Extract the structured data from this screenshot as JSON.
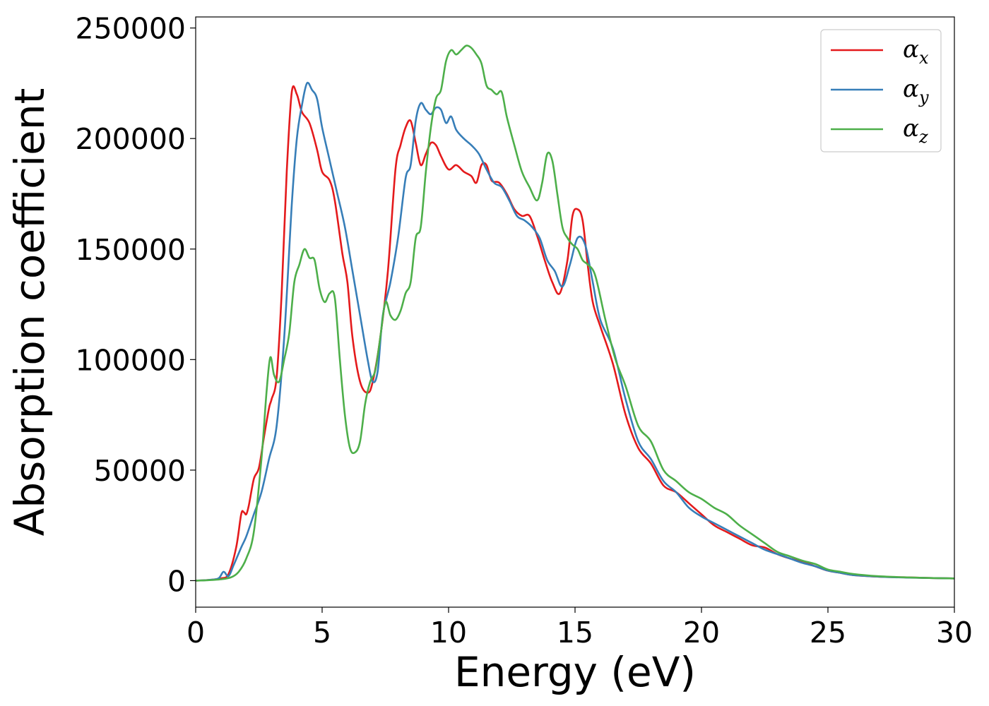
{
  "chart_data": {
    "type": "line",
    "xlabel": "Energy (eV)",
    "ylabel": "Absorption coefficient",
    "xlim": [
      0,
      30
    ],
    "ylim": [
      -12000,
      255000
    ],
    "xticks": [
      0,
      5,
      10,
      15,
      20,
      25,
      30
    ],
    "xtick_labels": [
      "0",
      "5",
      "10",
      "15",
      "20",
      "25",
      "30"
    ],
    "yticks": [
      0,
      50000,
      100000,
      150000,
      200000,
      250000
    ],
    "ytick_labels": [
      "0",
      "50000",
      "100000",
      "150000",
      "200000",
      "250000"
    ],
    "grid": false,
    "legend_position": "top-right",
    "series": [
      {
        "name": "α_x",
        "symbol": "α",
        "subscript": "x",
        "color": "#e41a1c",
        "x": [
          0,
          0.5,
          1.0,
          1.3,
          1.6,
          1.8,
          1.9,
          2.0,
          2.1,
          2.3,
          2.5,
          2.7,
          2.9,
          3.0,
          3.2,
          3.4,
          3.6,
          3.8,
          4.0,
          4.2,
          4.5,
          4.8,
          5.0,
          5.3,
          5.5,
          5.8,
          6.0,
          6.2,
          6.5,
          6.8,
          7.0,
          7.3,
          7.6,
          7.9,
          8.1,
          8.3,
          8.5,
          8.7,
          8.9,
          9.1,
          9.3,
          9.5,
          9.7,
          10.0,
          10.3,
          10.6,
          10.9,
          11.1,
          11.3,
          11.5,
          11.7,
          12.0,
          12.3,
          12.6,
          12.9,
          13.2,
          13.5,
          13.8,
          14.1,
          14.4,
          14.7,
          14.9,
          15.1,
          15.3,
          15.5,
          15.7,
          16.0,
          16.5,
          17.0,
          17.5,
          18.0,
          18.5,
          19.0,
          19.5,
          20.0,
          20.5,
          21.0,
          21.5,
          22.0,
          22.5,
          23.0,
          23.5,
          24.0,
          24.5,
          25.0,
          25.5,
          26.0,
          27.0,
          28.0,
          29.0,
          30.0
        ],
        "y": [
          0,
          300,
          1000,
          3000,
          15000,
          30000,
          31000,
          30000,
          34000,
          46000,
          51000,
          65000,
          78000,
          82000,
          92000,
          130000,
          185000,
          221000,
          220000,
          212000,
          207000,
          195000,
          185000,
          181000,
          172000,
          148000,
          135000,
          110000,
          90000,
          85000,
          90000,
          110000,
          140000,
          186000,
          197000,
          205000,
          208000,
          198000,
          188000,
          193000,
          198000,
          197000,
          192000,
          186000,
          188000,
          185000,
          183000,
          180000,
          188000,
          188000,
          181000,
          180000,
          175000,
          168000,
          165000,
          165000,
          156000,
          145000,
          135000,
          130000,
          145000,
          165000,
          168000,
          163000,
          143000,
          126000,
          115000,
          98000,
          75000,
          60000,
          53000,
          43000,
          40000,
          35000,
          30000,
          25000,
          22000,
          19000,
          16000,
          15000,
          12000,
          10000,
          8500,
          6500,
          4500,
          3500,
          2500,
          1800,
          1500,
          1200,
          1000
        ]
      },
      {
        "name": "α_y",
        "symbol": "α",
        "subscript": "y",
        "color": "#377eb8",
        "x": [
          0,
          0.5,
          0.9,
          1.1,
          1.3,
          1.5,
          1.8,
          2.0,
          2.3,
          2.6,
          2.9,
          3.2,
          3.5,
          3.8,
          4.0,
          4.2,
          4.4,
          4.6,
          4.8,
          5.0,
          5.3,
          5.6,
          5.9,
          6.2,
          6.5,
          6.8,
          7.0,
          7.2,
          7.4,
          7.7,
          8.0,
          8.3,
          8.5,
          8.7,
          8.9,
          9.1,
          9.3,
          9.5,
          9.7,
          9.9,
          10.1,
          10.3,
          10.6,
          10.9,
          11.2,
          11.5,
          11.8,
          12.1,
          12.4,
          12.7,
          13.0,
          13.3,
          13.6,
          13.9,
          14.2,
          14.5,
          14.8,
          15.1,
          15.4,
          15.7,
          16.0,
          16.5,
          17.0,
          17.5,
          18.0,
          18.5,
          19.0,
          19.5,
          20.0,
          20.5,
          21.0,
          21.5,
          22.0,
          22.5,
          23.0,
          23.5,
          24.0,
          24.5,
          25.0,
          25.5,
          26.0,
          27.0,
          28.0,
          29.0,
          30.0
        ],
        "y": [
          0,
          300,
          1000,
          4000,
          2000,
          7000,
          15000,
          20000,
          30000,
          40000,
          55000,
          70000,
          110000,
          170000,
          200000,
          215000,
          225000,
          222000,
          218000,
          205000,
          190000,
          175000,
          160000,
          140000,
          120000,
          100000,
          90000,
          95000,
          120000,
          135000,
          155000,
          182000,
          188000,
          208000,
          216000,
          213000,
          211000,
          214000,
          213000,
          207000,
          210000,
          204000,
          200000,
          197000,
          193000,
          186000,
          180000,
          178000,
          172000,
          165000,
          163000,
          160000,
          155000,
          145000,
          140000,
          133000,
          143000,
          155000,
          152000,
          135000,
          118000,
          105000,
          82000,
          63000,
          55000,
          45000,
          40000,
          33000,
          29000,
          26000,
          23000,
          20000,
          17000,
          14000,
          12000,
          10000,
          8000,
          6500,
          4500,
          3500,
          2500,
          1800,
          1400,
          1200,
          1000
        ]
      },
      {
        "name": "α_z",
        "symbol": "α",
        "subscript": "z",
        "color": "#4daf4a",
        "x": [
          0,
          0.5,
          1.0,
          1.4,
          1.7,
          2.0,
          2.3,
          2.6,
          2.8,
          2.95,
          3.1,
          3.3,
          3.5,
          3.7,
          3.9,
          4.1,
          4.3,
          4.5,
          4.7,
          4.9,
          5.1,
          5.3,
          5.5,
          5.7,
          5.9,
          6.1,
          6.3,
          6.5,
          6.7,
          6.9,
          7.1,
          7.3,
          7.5,
          7.7,
          7.9,
          8.1,
          8.3,
          8.5,
          8.7,
          8.9,
          9.1,
          9.3,
          9.5,
          9.7,
          9.9,
          10.1,
          10.3,
          10.5,
          10.7,
          10.9,
          11.1,
          11.3,
          11.5,
          11.7,
          11.9,
          12.1,
          12.3,
          12.6,
          12.9,
          13.2,
          13.5,
          13.7,
          13.9,
          14.1,
          14.3,
          14.5,
          14.7,
          14.9,
          15.1,
          15.3,
          15.5,
          15.8,
          16.2,
          16.6,
          17.0,
          17.5,
          18.0,
          18.5,
          19.0,
          19.5,
          20.0,
          20.5,
          21.0,
          21.5,
          22.0,
          22.5,
          23.0,
          23.5,
          24.0,
          24.5,
          25.0,
          25.5,
          26.0,
          27.0,
          28.0,
          29.0,
          30.0
        ],
        "y": [
          0,
          200,
          600,
          1500,
          4000,
          10000,
          22000,
          55000,
          85000,
          101000,
          93000,
          90000,
          100000,
          112000,
          135000,
          143000,
          150000,
          146000,
          145000,
          132000,
          126000,
          130000,
          128000,
          100000,
          75000,
          60000,
          58000,
          63000,
          80000,
          90000,
          95000,
          110000,
          126000,
          120000,
          118000,
          122000,
          130000,
          135000,
          155000,
          160000,
          185000,
          205000,
          218000,
          222000,
          235000,
          240000,
          238000,
          240000,
          242000,
          241000,
          238000,
          234000,
          224000,
          222000,
          220000,
          221000,
          210000,
          197000,
          185000,
          178000,
          172000,
          180000,
          193000,
          190000,
          175000,
          160000,
          155000,
          152000,
          150000,
          145000,
          143000,
          138000,
          118000,
          100000,
          88000,
          70000,
          63000,
          50000,
          45000,
          40000,
          37000,
          33000,
          30000,
          25000,
          21000,
          17000,
          13000,
          11000,
          9000,
          7500,
          5000,
          4000,
          3000,
          2000,
          1500,
          1200,
          1000
        ]
      }
    ]
  }
}
